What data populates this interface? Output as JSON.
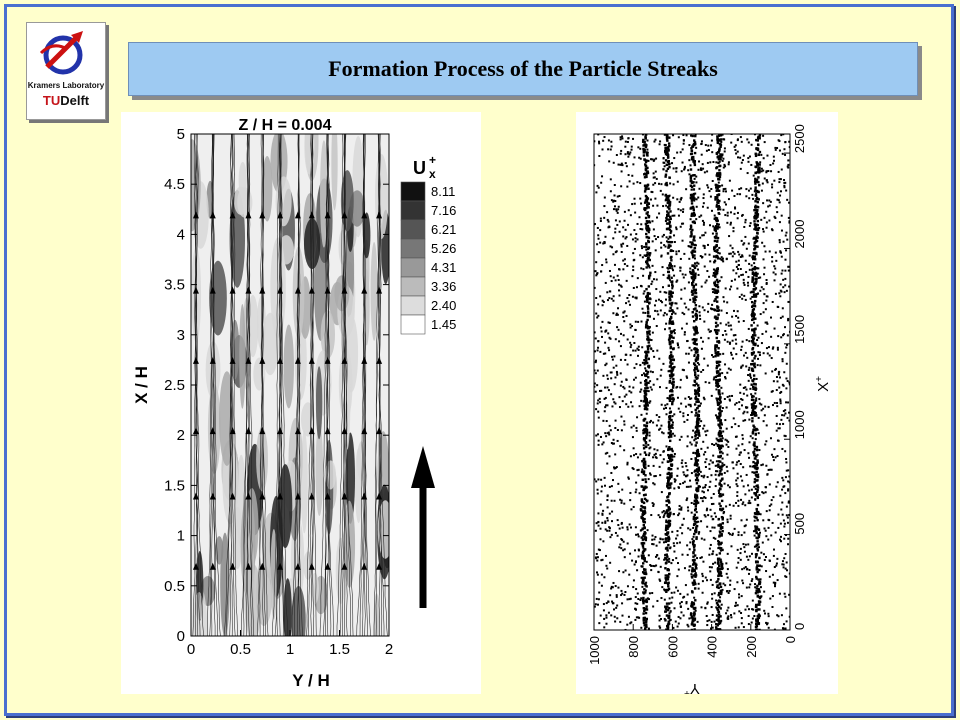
{
  "slide": {
    "title": "Formation Process of the Particle Streaks",
    "logo": {
      "lab_name": "Kramers Laboratory",
      "brand_prefix": "TU",
      "brand_suffix": "Delft"
    }
  },
  "colors": {
    "background": "#ffffcc",
    "frame": "#4a6fd0",
    "title_box": "#9ecaf2"
  },
  "chart_data": [
    {
      "type": "heatmap",
      "title": "Z / H = 0.004",
      "xlabel": "Y / H",
      "ylabel": "X / H",
      "xlim": [
        0,
        2
      ],
      "ylim": [
        0,
        5
      ],
      "x_ticks": [
        "0",
        "0.5",
        "1",
        "1.5",
        "2"
      ],
      "y_ticks": [
        "0",
        "0.5",
        "1",
        "1.5",
        "2",
        "2.5",
        "3",
        "3.5",
        "4",
        "4.5",
        "5"
      ],
      "legend": {
        "title_main": "U",
        "title_super": "+",
        "title_sub": "x",
        "levels": [
          "8.11",
          "7.16",
          "6.21",
          "5.26",
          "4.31",
          "3.36",
          "2.40",
          "1.45"
        ],
        "colors": [
          "#111111",
          "#333333",
          "#555555",
          "#777777",
          "#999999",
          "#bbbbbb",
          "#dddddd",
          "#ffffff"
        ]
      },
      "flow_arrow": "up"
    },
    {
      "type": "scatter",
      "xlabel": "Y+",
      "ylabel": "X+",
      "xlim": [
        1000,
        0
      ],
      "ylim": [
        0,
        2600
      ],
      "x_ticks": [
        "1000",
        "800",
        "600",
        "400",
        "200",
        "0"
      ],
      "y_ticks": [
        "0",
        "500",
        "1000",
        "1500",
        "2000",
        "2500"
      ],
      "streak_positions_y_plus": [
        735,
        615,
        485,
        365,
        175
      ],
      "particle_count_visual": "dense random scatter with concentrated streaks"
    }
  ]
}
